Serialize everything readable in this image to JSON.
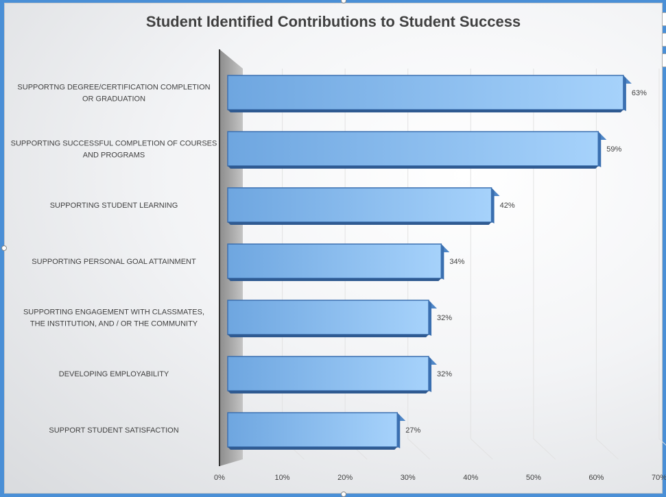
{
  "chart_data": {
    "type": "bar",
    "orientation": "horizontal",
    "title": "Student Identified Contributions to Student Success",
    "categories": [
      "SUPPORTNG DEGREE/CERTIFICATION COMPLETION OR GRADUATION",
      "SUPPORTING SUCCESSFUL COMPLETION OF COURSES AND PROGRAMS",
      "SUPPORTING STUDENT LEARNING",
      "SUPPORTING PERSONAL GOAL ATTAINMENT",
      "SUPPORTING ENGAGEMENT WITH CLASSMATES, THE INSTITUTION, AND / OR THE COMMUNITY",
      "DEVELOPING EMPLOYABILITY",
      "SUPPORT STUDENT SATISFACTION"
    ],
    "category_lines": [
      [
        "SUPPORTNG DEGREE/CERTIFICATION COMPLETION",
        "OR GRADUATION"
      ],
      [
        "SUPPORTING SUCCESSFUL COMPLETION OF COURSES",
        "AND PROGRAMS"
      ],
      [
        "SUPPORTING STUDENT LEARNING"
      ],
      [
        "SUPPORTING PERSONAL GOAL ATTAINMENT"
      ],
      [
        "SUPPORTING ENGAGEMENT WITH CLASSMATES,",
        "THE INSTITUTION, AND / OR THE COMMUNITY"
      ],
      [
        "DEVELOPING EMPLOYABILITY"
      ],
      [
        "SUPPORT STUDENT SATISFACTION"
      ]
    ],
    "values": [
      63,
      59,
      42,
      34,
      32,
      32,
      27
    ],
    "data_labels": [
      "63%",
      "59%",
      "42%",
      "34%",
      "32%",
      "32%",
      "27%"
    ],
    "x_ticks": [
      "0%",
      "10%",
      "20%",
      "30%",
      "40%",
      "50%",
      "60%",
      "70%"
    ],
    "xlim": [
      0,
      70
    ],
    "xlabel": "",
    "ylabel": "",
    "grid": true,
    "legend": "none",
    "bar_color": "#7fb3e8",
    "bar_edge_color": "#3a6fb0"
  }
}
